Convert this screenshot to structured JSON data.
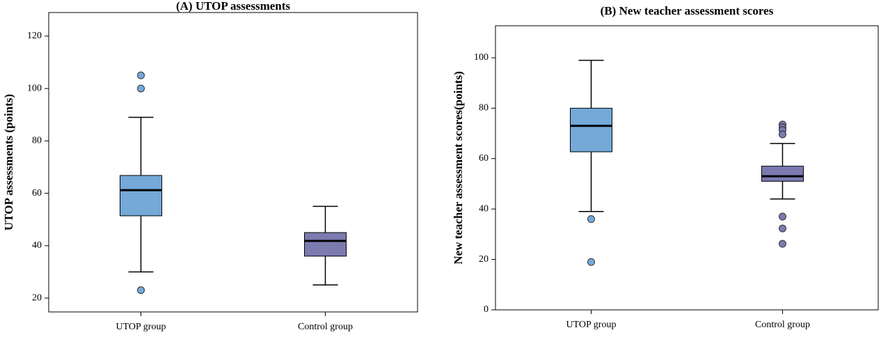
{
  "chart_data": [
    {
      "type": "box",
      "title": "(A) UTOP assessments",
      "y_label": "UTOP assessments (points)",
      "categories": [
        "UTOP group",
        "Control group"
      ],
      "boxes": [
        {
          "whisker_low": 30,
          "q1": 51.4,
          "median": 61.2,
          "q3": 66.8,
          "whisker_high": 89,
          "outliers": [
            105,
            100,
            23
          ],
          "color": "#74a9d8"
        },
        {
          "whisker_low": 25,
          "q1": 36,
          "median": 41.8,
          "q3": 45,
          "whisker_high": 55,
          "outliers": [],
          "color": "#7b7bb0"
        }
      ],
      "ylim": [
        14.7,
        129
      ],
      "yticks": [
        20,
        40,
        60,
        80,
        100,
        120
      ],
      "grid": false
    },
    {
      "type": "box",
      "title": "(B) New teacher assessment scores",
      "y_label": "New teacher assessment scores(points)",
      "categories": [
        "UTOP group",
        "Control group"
      ],
      "boxes": [
        {
          "whisker_low": 39,
          "q1": 62.7,
          "median": 73,
          "q3": 80,
          "whisker_high": 99,
          "outliers": [
            36,
            19
          ],
          "color": "#74a9d8"
        },
        {
          "whisker_low": 44,
          "q1": 51,
          "median": 53,
          "q3": 57,
          "whisker_high": 66,
          "outliers": [
            73.5,
            72.4,
            71.3,
            69.6,
            37,
            32.3,
            26.2
          ],
          "color": "#7b7bb0"
        }
      ],
      "ylim": [
        0,
        112.7
      ],
      "yticks": [
        0,
        20,
        40,
        60,
        80,
        100
      ],
      "grid": false
    }
  ]
}
